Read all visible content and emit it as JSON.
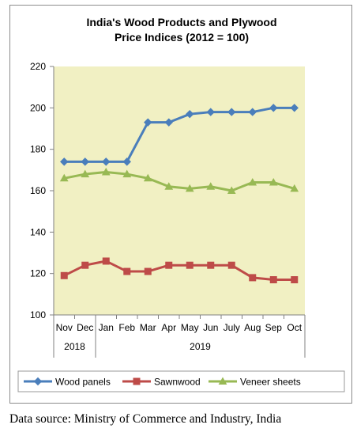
{
  "chart_data": {
    "type": "line",
    "title_lines": [
      "India's Wood Products and Plywood",
      "Price Indices (2012 = 100)"
    ],
    "categories": [
      "Nov",
      "Dec",
      "Jan",
      "Feb",
      "Mar",
      "Apr",
      "May",
      "Jun",
      "July",
      "Aug",
      "Sep",
      "Oct"
    ],
    "year_groups": [
      {
        "label": "2018",
        "start": 0,
        "end": 1
      },
      {
        "label": "2019",
        "start": 2,
        "end": 11
      }
    ],
    "ylim": [
      100,
      220
    ],
    "yticks": [
      100,
      120,
      140,
      160,
      180,
      200,
      220
    ],
    "grid": false,
    "legend_position": "bottom",
    "series": [
      {
        "name": "Wood panels",
        "color": "#4a7ebb",
        "marker": "diamond",
        "values": [
          174,
          174,
          174,
          174,
          193,
          193,
          197,
          198,
          198,
          198,
          200,
          200
        ]
      },
      {
        "name": "Sawnwood",
        "color": "#be4b48",
        "marker": "square",
        "values": [
          119,
          124,
          126,
          121,
          121,
          124,
          124,
          124,
          124,
          118,
          117,
          117
        ]
      },
      {
        "name": "Veneer sheets",
        "color": "#98b954",
        "marker": "triangle",
        "values": [
          166,
          168,
          169,
          168,
          166,
          162,
          161,
          162,
          160,
          164,
          164,
          161
        ]
      }
    ]
  },
  "source_text": "Data source: Ministry of Commerce and Industry, India"
}
